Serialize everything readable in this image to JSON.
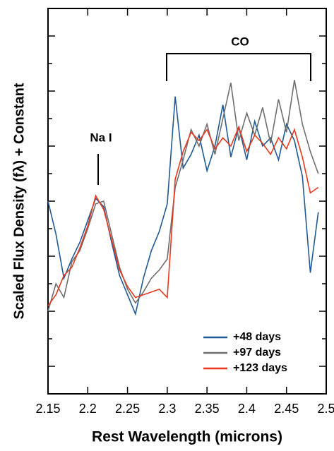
{
  "chart_data": {
    "type": "line",
    "x_label": "Rest Wavelength (microns)",
    "y_label": "Scaled Flux Density (fλ) + Constant",
    "annotations": [
      "Na I",
      "CO"
    ],
    "x": [
      2.15,
      2.16,
      2.17,
      2.18,
      2.19,
      2.2,
      2.21,
      2.22,
      2.23,
      2.24,
      2.25,
      2.26,
      2.27,
      2.28,
      2.29,
      2.3,
      2.31,
      2.32,
      2.33,
      2.34,
      2.35,
      2.36,
      2.37,
      2.38,
      2.39,
      2.4,
      2.41,
      2.42,
      2.43,
      2.44,
      2.45,
      2.46,
      2.47,
      2.48,
      2.49
    ],
    "series": [
      {
        "name": "+48 days",
        "color": "#1f5a96",
        "values": [
          7.0,
          5.8,
          4.2,
          4.9,
          5.5,
          6.3,
          7.1,
          6.8,
          5.5,
          4.3,
          3.6,
          2.9,
          4.2,
          5.2,
          5.9,
          6.9,
          10.8,
          8.2,
          8.7,
          9.4,
          8.1,
          9.0,
          10.5,
          8.6,
          9.7,
          8.5,
          9.9,
          9.0,
          9.3,
          8.5,
          9.8,
          9.2,
          7.9,
          4.4,
          6.6
        ]
      },
      {
        "name": "+97 days",
        "color": "#6e6e6e",
        "values": [
          3.0,
          4.0,
          3.5,
          4.8,
          5.2,
          6.0,
          6.9,
          7.0,
          5.8,
          4.6,
          3.8,
          3.3,
          3.7,
          4.2,
          4.5,
          4.9,
          7.5,
          8.5,
          9.6,
          9.0,
          9.8,
          8.7,
          10.0,
          11.3,
          9.2,
          10.2,
          9.4,
          10.4,
          9.1,
          10.7,
          9.5,
          11.4,
          9.8,
          8.8,
          8.0
        ]
      },
      {
        "name": "+123 days",
        "color": "#e8391d",
        "values": [
          3.2,
          3.6,
          4.3,
          4.6,
          5.3,
          6.1,
          7.2,
          6.7,
          5.6,
          4.5,
          3.9,
          3.5,
          3.6,
          3.7,
          3.8,
          3.5,
          7.8,
          8.8,
          9.5,
          9.2,
          9.6,
          8.9,
          9.3,
          9.0,
          9.7,
          8.8,
          9.4,
          9.1,
          8.7,
          9.3,
          8.9,
          9.6,
          8.6,
          7.3,
          7.5
        ]
      }
    ],
    "xlim": [
      2.15,
      2.5
    ],
    "xticks": [
      2.15,
      2.2,
      2.25,
      2.3,
      2.35,
      2.4,
      2.45,
      2.5
    ],
    "ylim": [
      0,
      14
    ],
    "yticks": [
      1,
      2,
      3,
      4,
      5,
      6,
      7,
      8,
      9,
      10,
      11,
      12,
      13
    ],
    "legend": "lower right"
  }
}
